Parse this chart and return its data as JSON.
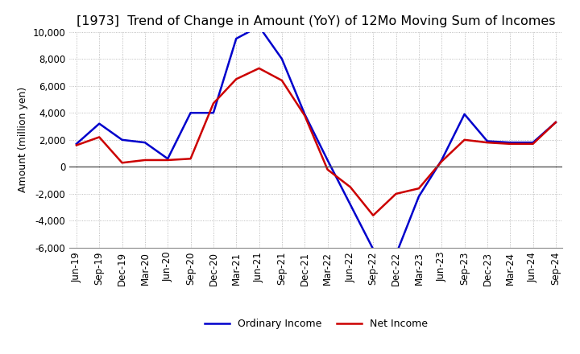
{
  "title": "[1973]  Trend of Change in Amount (YoY) of 12Mo Moving Sum of Incomes",
  "ylabel": "Amount (million yen)",
  "background_color": "#ffffff",
  "grid_color": "#aaaaaa",
  "title_fontsize": 11.5,
  "label_fontsize": 9,
  "tick_fontsize": 8.5,
  "x_labels": [
    "Jun-19",
    "Sep-19",
    "Dec-19",
    "Mar-20",
    "Jun-20",
    "Sep-20",
    "Dec-20",
    "Mar-21",
    "Jun-21",
    "Sep-21",
    "Dec-21",
    "Mar-22",
    "Jun-22",
    "Sep-22",
    "Dec-22",
    "Mar-23",
    "Jun-23",
    "Sep-23",
    "Dec-23",
    "Mar-24",
    "Jun-24",
    "Sep-24"
  ],
  "ordinary_income": [
    1700,
    3200,
    2000,
    1800,
    600,
    4000,
    4000,
    9500,
    10400,
    8000,
    3900,
    500,
    -2800,
    -6100,
    -6500,
    -2200,
    500,
    3900,
    1900,
    1800,
    1800,
    3300
  ],
  "net_income": [
    1600,
    2200,
    300,
    500,
    500,
    600,
    4700,
    6500,
    7300,
    6400,
    3800,
    -200,
    -1500,
    -3600,
    -2000,
    -1600,
    400,
    2000,
    1800,
    1700,
    1700,
    3300
  ],
  "ordinary_income_color": "#0000cc",
  "net_income_color": "#cc0000",
  "ylim": [
    -6000,
    10000
  ],
  "yticks": [
    -6000,
    -4000,
    -2000,
    0,
    2000,
    4000,
    6000,
    8000,
    10000
  ]
}
